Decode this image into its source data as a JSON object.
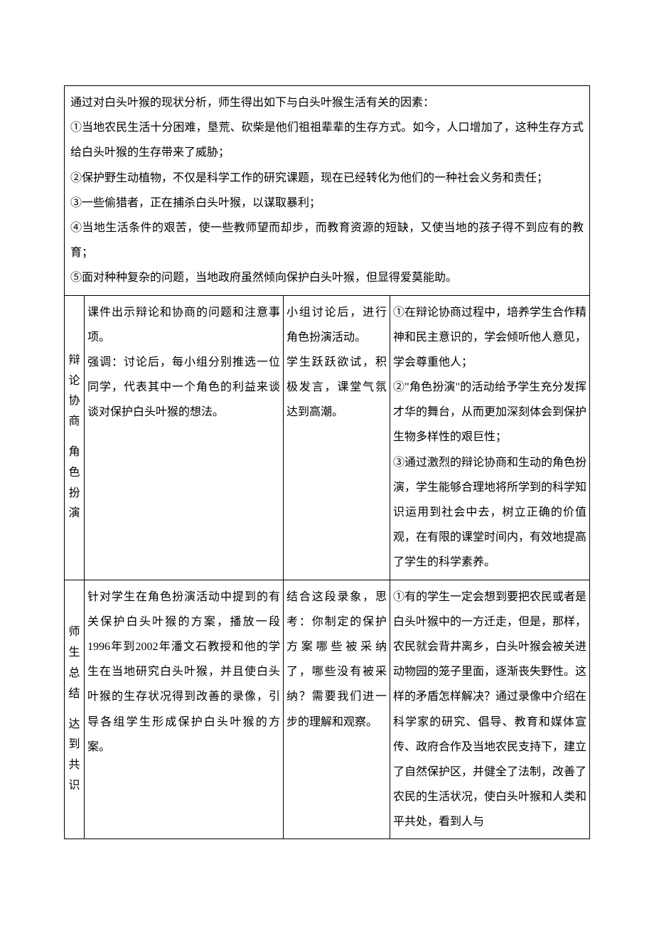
{
  "page": {
    "background_color": "#ffffff",
    "text_color": "#000000",
    "border_color": "#000000",
    "font_family": "SimSun",
    "base_fontsize": 16,
    "line_height": 2.2
  },
  "top_section": {
    "intro": "通过对白头叶猴的现状分析，师生得出如下与白头叶猴生活有关的因素：",
    "items": [
      "①当地农民生活十分困难，垦荒、砍柴是他们祖祖辈辈的生存方式。如今，人口增加了，这种生存方式给白头叶猴的生存带来了威胁；",
      "②保护野生动植物，不仅是科学工作的研究课题，现在已经转化为他们的一种社会义务和责任；",
      "③一些偷猎者，正在捕杀白头叶猴，以谋取暴利；",
      "④当地生活条件的艰苦，使一些教师望而却步，而教育资源的短缺，又使当地的孩子得不到应有的教育；",
      "⑤面对种种复杂的问题，当地政府虽然倾向保护白头叶猴，但显得爱莫能助。"
    ]
  },
  "rows": [
    {
      "label_lines": [
        "辩",
        "论",
        "协",
        "商",
        "",
        "角",
        "色",
        "扮",
        "演"
      ],
      "teacher": [
        "课件出示辩论和协商的问题和注意事项。",
        "强调：讨论后，每小组分别推选一位同学，代表其中一个角色的利益来谈谈对保护白头叶猴的想法。"
      ],
      "student": [
        "小组讨论后，进行角色扮演活动。",
        "学生跃跃欲试，积极发言，课堂气氛达到高潮。"
      ],
      "intent": [
        "①在辩论协商过程中，培养学生合作精神和民主意识的，学会倾听他人意见，学会尊重他人；",
        "②\"角色扮演\"的活动给予学生充分发挥才华的舞台，从而更加深刻体会到保护生物多样性的艰巨性；",
        "③通过激烈的辩论协商和生动的角色扮演，学生能够合理地将所学到的科学知识运用到社会中去，树立正确的价值观，在有限的课堂时间内，有效地提高了学生的科学素养。"
      ]
    },
    {
      "label_lines": [
        "师",
        "生",
        "总",
        "结",
        "",
        "达",
        "到",
        "共",
        "识"
      ],
      "teacher": [
        "针对学生在角色扮演活动中提到的有关保护白头叶猴的方案，播放一段1996年到2002年潘文石教授和他的学生在当地研究白头叶猴，并且使白头叶猴的生存状况得到改善的录像，引导各组学生形成保护白头叶猴的方案。"
      ],
      "student": [
        "结合这段录象，思考：你制定的保护方案哪些被采纳了，哪些没有被采纳？需要我们进一步的理解和观察。"
      ],
      "intent": [
        "①有的学生一定会想到要把农民或者是白头叶猴中的一方迁走，但是，那样，农民就会背井离乡，白头叶猴会被关进动物园的笼子里面，逐渐丧失野性。这样的矛盾怎样解决？通过录像中介绍在科学家的研究、倡导、教育和媒体宣传、政府合作及当地农民支持下，建立了自然保护区，并健全了法制，改善了农民的生活状况，使白头叶猴和人类和平共处，看到人与"
      ]
    }
  ]
}
